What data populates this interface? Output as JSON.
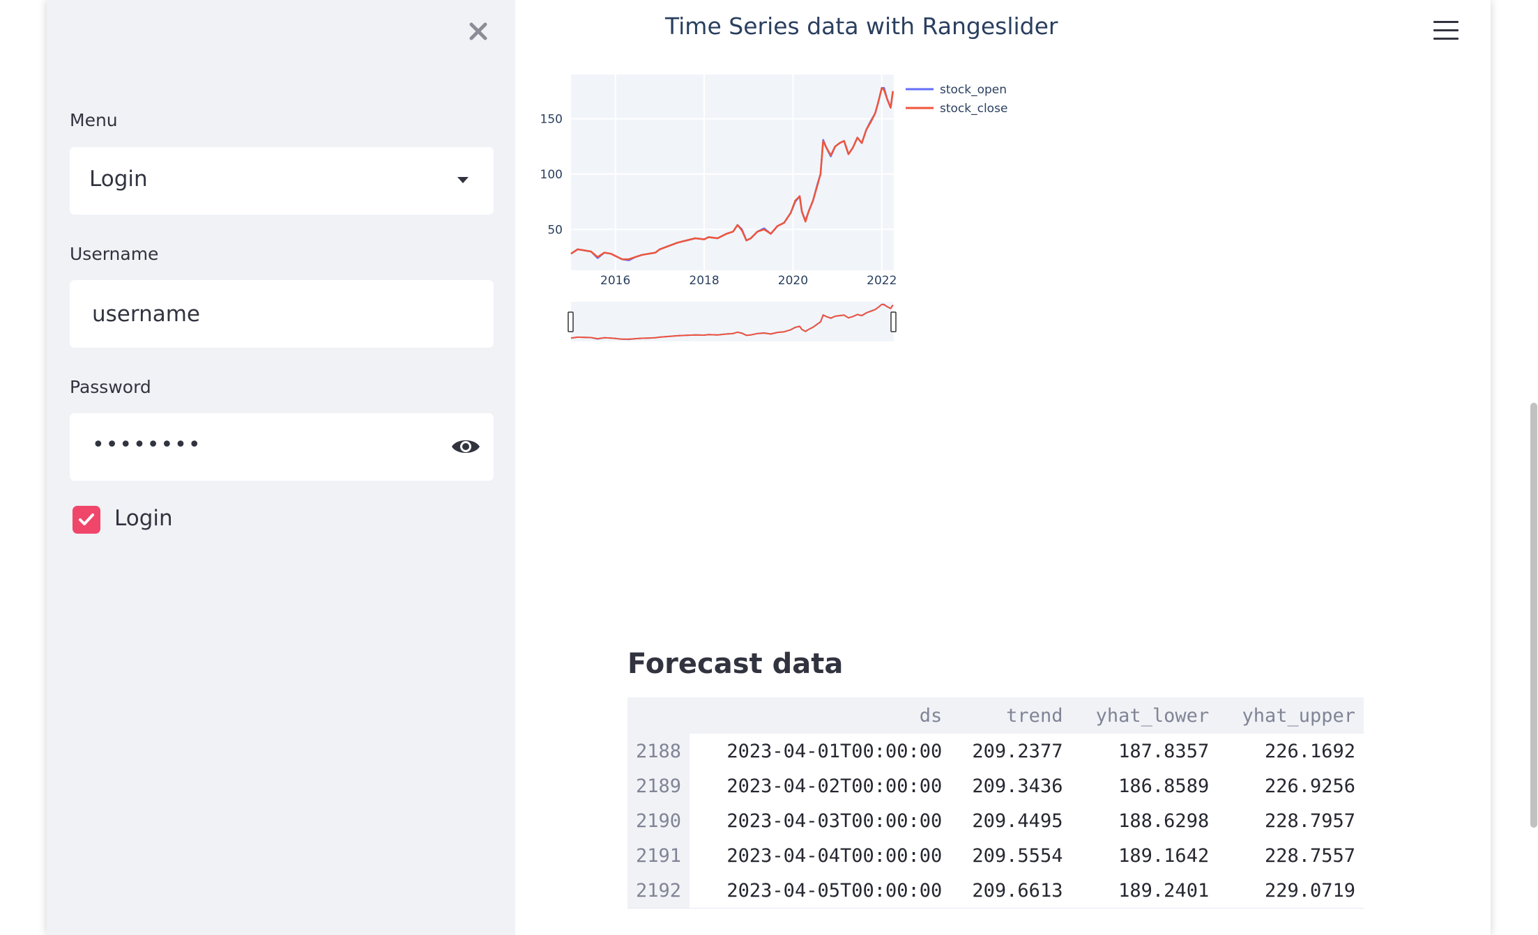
{
  "sidebar": {
    "menu_label": "Menu",
    "menu_selected": "Login",
    "username_label": "Username",
    "username_value": "username",
    "password_label": "Password",
    "password_mask": "••••••••",
    "login_checkbox_label": "Login",
    "login_checked": true
  },
  "main": {
    "chart_title": "Time Series data with Rangeslider",
    "forecast_title": "Forecast data",
    "table": {
      "columns": [
        "",
        "ds",
        "trend",
        "yhat_lower",
        "yhat_upper"
      ],
      "rows": [
        [
          "2188",
          "2023-04-01T00:00:00",
          "209.2377",
          "187.8357",
          "226.1692"
        ],
        [
          "2189",
          "2023-04-02T00:00:00",
          "209.3436",
          "186.8589",
          "226.9256"
        ],
        [
          "2190",
          "2023-04-03T00:00:00",
          "209.4495",
          "188.6298",
          "228.7957"
        ],
        [
          "2191",
          "2023-04-04T00:00:00",
          "209.5554",
          "189.1642",
          "228.7557"
        ],
        [
          "2192",
          "2023-04-05T00:00:00",
          "209.6613",
          "189.2401",
          "229.0719"
        ]
      ]
    }
  },
  "chart_data": {
    "type": "line",
    "title": "Time Series data with Rangeslider",
    "xlabel": "",
    "ylabel": "",
    "xlim": [
      2015.0,
      2022.27
    ],
    "ylim": [
      13,
      190
    ],
    "x_ticks": [
      "2016",
      "2018",
      "2020",
      "2022"
    ],
    "y_ticks": [
      "50",
      "100",
      "150"
    ],
    "legend_position": "right",
    "range_slider": true,
    "series": [
      {
        "name": "stock_open",
        "color": "#636efa",
        "x": [
          2015.0,
          2015.15,
          2015.3,
          2015.45,
          2015.6,
          2015.75,
          2015.9,
          2016.0,
          2016.15,
          2016.3,
          2016.45,
          2016.6,
          2016.75,
          2016.9,
          2017.0,
          2017.2,
          2017.4,
          2017.6,
          2017.8,
          2018.0,
          2018.1,
          2018.3,
          2018.5,
          2018.65,
          2018.75,
          2018.85,
          2018.95,
          2019.05,
          2019.2,
          2019.35,
          2019.5,
          2019.65,
          2019.8,
          2019.95,
          2020.05,
          2020.15,
          2020.2,
          2020.28,
          2020.35,
          2020.45,
          2020.55,
          2020.62,
          2020.68,
          2020.75,
          2020.85,
          2020.95,
          2021.05,
          2021.15,
          2021.25,
          2021.35,
          2021.45,
          2021.55,
          2021.65,
          2021.75,
          2021.85,
          2021.92,
          2022.0,
          2022.05,
          2022.12,
          2022.2,
          2022.25
        ],
        "values": [
          28,
          32,
          31,
          30,
          24,
          29,
          28,
          26,
          23,
          22,
          25,
          27,
          28,
          29,
          32,
          35,
          38,
          40,
          42,
          41,
          43,
          42,
          46,
          48,
          54,
          50,
          40,
          42,
          48,
          51,
          46,
          53,
          56,
          65,
          75,
          80,
          66,
          58,
          66,
          76,
          91,
          100,
          131,
          124,
          116,
          125,
          128,
          130,
          118,
          124,
          133,
          128,
          140,
          148,
          155,
          165,
          178,
          178,
          168,
          160,
          175
        ]
      },
      {
        "name": "stock_close",
        "color": "#ef553b",
        "x": [
          2015.0,
          2015.15,
          2015.3,
          2015.45,
          2015.6,
          2015.75,
          2015.9,
          2016.0,
          2016.15,
          2016.3,
          2016.45,
          2016.6,
          2016.75,
          2016.9,
          2017.0,
          2017.2,
          2017.4,
          2017.6,
          2017.8,
          2018.0,
          2018.1,
          2018.3,
          2018.5,
          2018.65,
          2018.75,
          2018.85,
          2018.95,
          2019.05,
          2019.2,
          2019.35,
          2019.5,
          2019.65,
          2019.8,
          2019.95,
          2020.05,
          2020.15,
          2020.2,
          2020.28,
          2020.35,
          2020.45,
          2020.55,
          2020.62,
          2020.68,
          2020.75,
          2020.85,
          2020.95,
          2021.05,
          2021.15,
          2021.25,
          2021.35,
          2021.45,
          2021.55,
          2021.65,
          2021.75,
          2021.85,
          2021.92,
          2022.0,
          2022.05,
          2022.12,
          2022.2,
          2022.25
        ],
        "values": [
          28,
          32,
          31,
          30,
          25,
          29,
          28,
          26,
          23,
          23,
          25,
          27,
          28,
          29,
          32,
          35,
          38,
          40,
          42,
          41,
          43,
          42,
          46,
          48,
          54,
          49,
          40,
          42,
          48,
          50,
          46,
          53,
          56,
          65,
          76,
          80,
          66,
          57,
          66,
          76,
          90,
          100,
          130,
          124,
          117,
          125,
          128,
          130,
          118,
          124,
          133,
          128,
          140,
          147,
          155,
          165,
          178,
          176,
          168,
          160,
          175
        ]
      }
    ]
  }
}
